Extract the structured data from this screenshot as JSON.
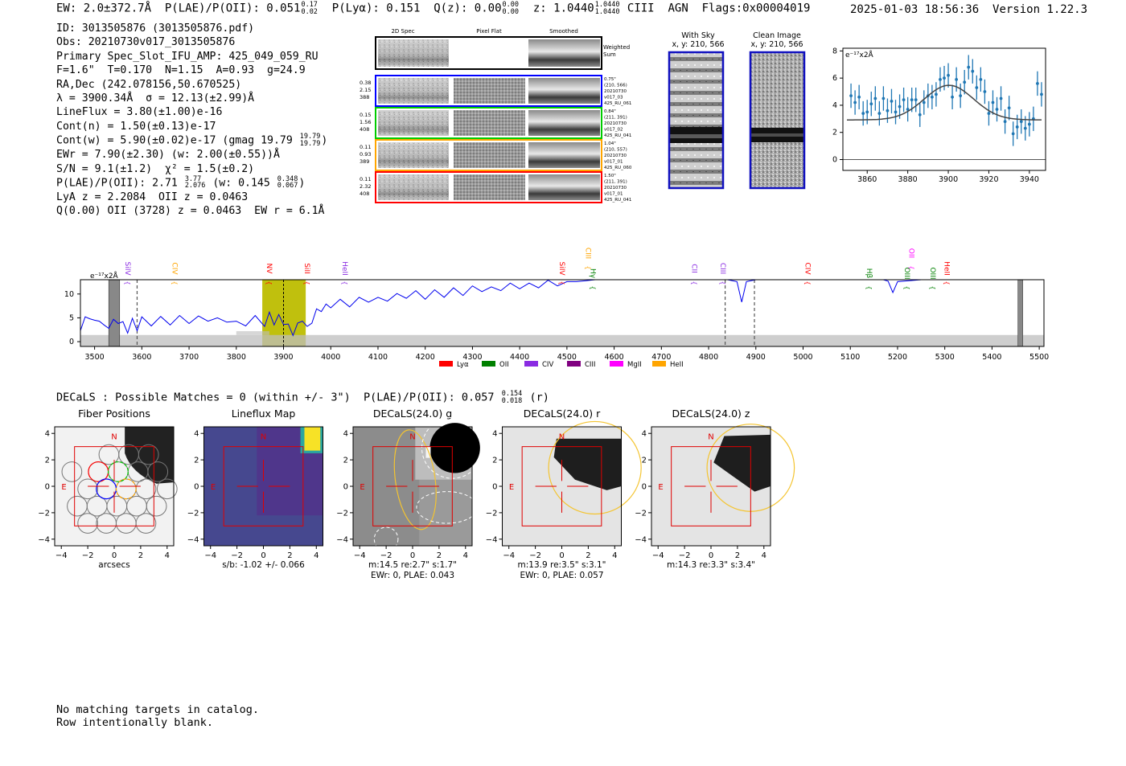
{
  "header": {
    "ew_label": "EW: 2.0±372.7Å",
    "plae_label": "P(LAE)/P(OII): 0.051",
    "plae_hi": "0.17",
    "plae_lo": "0.02",
    "plya_label": "P(Lyα): 0.151",
    "qz_label": "Q(z): 0.00",
    "qz_hi": "0.00",
    "qz_lo": "0.00",
    "z_label": "z: 1.0440",
    "z_hi": "1.0440",
    "z_lo": "1.0440",
    "tail": "CIII  AGN  Flags:0x00004019",
    "timestamp": "2025-01-03 18:56:36",
    "version": "Version 1.22.3"
  },
  "info": {
    "id": "ID: 3013505876 (3013505876.pdf)",
    "obs": "Obs: 20210730v017_3013505876",
    "primary": "Primary Spec_Slot_IFU_AMP: 425_049_059_RU",
    "fiber": "F=1.6\"  T=0.170  N=1.15  A=0.93  g=24.9",
    "radec": "RA,Dec (242.078156,50.670525)",
    "lambda": "λ = 3900.34Å  σ = 12.13(±2.99)Å",
    "lineflux": "LineFlux = 3.80(±1.00)e-16",
    "contn": "Cont(n) = 1.50(±0.13)e-17",
    "contw": "Cont(w) = 5.90(±0.02)e-17 (gmag 19.79",
    "contw_hi": "19.79",
    "contw_lo": "19.79",
    "contw_end": ")",
    "ewr": "EWr = 7.90(±2.30) (w: 2.00(±0.55))Å",
    "sn": "S/N = 9.1(±1.2)  χ² = 1.5(±0.2)",
    "plae": "P(LAE)/P(OII): 2.71",
    "plae_hi": "3.77",
    "plae_lo": "2.076",
    "plae_w": " (w: 0.145",
    "plae_w_hi": "0.348",
    "plae_w_lo": "0.067",
    "plae_end": ")",
    "lya": "LyA z = 2.2084  OII z = 0.0463",
    "q": "Q(0.00) OII (3728) z = 0.0463  EW r = 6.1Å"
  },
  "cutouts": {
    "col_titles": [
      "2D Spec",
      "Pixel Flat",
      "Smoothed"
    ],
    "weighted_sum": [
      "Weighted",
      "Sum"
    ],
    "row_colors": [
      "#0000ff",
      "#00cc00",
      "#ffa500",
      "#ff0000"
    ],
    "left_labels": [
      [
        "0.38",
        "2.15",
        "388"
      ],
      [
        "0.15",
        "1.56",
        "408"
      ],
      [
        "0.11",
        "0.93",
        "389"
      ],
      [
        "0.11",
        "2.32",
        "408"
      ]
    ],
    "right_labels": [
      [
        "0.75\"",
        "(210, 566)",
        "20210730",
        "v017_03",
        "425_RU_061"
      ],
      [
        "0.84\"",
        "(211, 391)",
        "20210730",
        "v017_02",
        "425_RU_041"
      ],
      [
        "1.04\"",
        "(210, 557)",
        "20210730",
        "v017_01",
        "425_RU_060"
      ],
      [
        "1.50\"",
        "(211, 391)",
        "20210730",
        "v017_01",
        "425_RU_041"
      ]
    ]
  },
  "sky": {
    "with_sky_title": "With Sky",
    "with_sky_coords": "x, y: 210, 566",
    "clean_title": "Clean Image",
    "clean_coords": "x, y: 210, 566",
    "frame_color": "#1010c0"
  },
  "chart_data": [
    {
      "type": "scatter",
      "name": "line-fit-zoom",
      "title": "",
      "ylabel": "e⁻¹⁷x2Å",
      "xlim": [
        3848,
        3948
      ],
      "ylim": [
        -0.8,
        8.2
      ],
      "xticks": [
        3860,
        3880,
        3900,
        3920,
        3940
      ],
      "yticks": [
        0,
        2,
        4,
        6,
        8
      ],
      "points_x": [
        3852,
        3854,
        3856,
        3858,
        3860,
        3862,
        3864,
        3866,
        3868,
        3870,
        3872,
        3874,
        3876,
        3878,
        3880,
        3882,
        3884,
        3886,
        3888,
        3890,
        3892,
        3894,
        3896,
        3898,
        3900,
        3902,
        3904,
        3906,
        3908,
        3910,
        3912,
        3914,
        3916,
        3918,
        3920,
        3922,
        3924,
        3926,
        3928,
        3930,
        3932,
        3934,
        3936,
        3938,
        3940,
        3942,
        3944,
        3946
      ],
      "points_y": [
        4.7,
        4.2,
        4.6,
        3.4,
        3.5,
        4.1,
        4.5,
        3.4,
        4.5,
        3.6,
        4.3,
        3.5,
        3.9,
        4.4,
        3.7,
        4.4,
        4.4,
        3.3,
        4.2,
        4.7,
        4.6,
        4.8,
        5.9,
        6.0,
        6.2,
        4.6,
        5.9,
        4.7,
        5.7,
        6.8,
        6.5,
        5.3,
        5.9,
        5.0,
        3.4,
        4.2,
        3.7,
        4.5,
        2.8,
        3.8,
        1.9,
        2.4,
        2.8,
        2.3,
        2.6,
        3.0,
        5.6,
        4.8
      ],
      "errors": [
        0.9,
        0.9,
        0.9,
        0.9,
        0.9,
        0.9,
        0.9,
        0.9,
        0.9,
        0.9,
        0.9,
        0.9,
        0.9,
        0.9,
        0.9,
        0.9,
        0.9,
        0.9,
        0.9,
        0.9,
        0.9,
        0.9,
        0.9,
        0.9,
        0.9,
        0.9,
        0.9,
        0.9,
        0.9,
        0.9,
        0.9,
        0.9,
        0.9,
        0.9,
        0.9,
        0.9,
        0.9,
        0.9,
        0.9,
        0.9,
        0.9,
        0.9,
        0.9,
        0.9,
        0.9,
        0.9,
        0.9,
        0.9
      ],
      "model": {
        "type": "gaussian",
        "center": 3900.34,
        "sigma": 12.13,
        "amplitude": 2.55,
        "baseline": 2.92
      },
      "point_color": "#1f77b4"
    },
    {
      "type": "line",
      "name": "full-spectrum",
      "ylabel": "e⁻¹⁷x2Å",
      "xlim": [
        3470,
        5510
      ],
      "ylim": [
        -1,
        13
      ],
      "xticks": [
        3500,
        3600,
        3700,
        3800,
        3900,
        4000,
        4100,
        4200,
        4300,
        4400,
        4500,
        4600,
        4700,
        4800,
        4900,
        5000,
        5100,
        5200,
        5300,
        5400,
        5500
      ],
      "yticks": [
        0,
        5,
        10
      ],
      "flux_x": [
        3470,
        3480,
        3490,
        3500,
        3510,
        3520,
        3530,
        3540,
        3550,
        3560,
        3570,
        3580,
        3590,
        3600,
        3620,
        3640,
        3660,
        3680,
        3700,
        3720,
        3740,
        3760,
        3780,
        3800,
        3820,
        3840,
        3860,
        3870,
        3880,
        3890,
        3900,
        3910,
        3920,
        3930,
        3940,
        3950,
        3960,
        3970,
        3980,
        3990,
        4000,
        4020,
        4040,
        4060,
        4080,
        4100,
        4120,
        4140,
        4160,
        4180,
        4200,
        4220,
        4240,
        4260,
        4280,
        4300,
        4320,
        4340,
        4360,
        4380,
        4400,
        4420,
        4440,
        4460,
        4480,
        4500,
        4520,
        4540,
        4560,
        4580,
        4600,
        4650,
        4700,
        4750,
        4800,
        4820,
        4840,
        4860,
        4870,
        4880,
        4900,
        4950,
        5000,
        5050,
        5100,
        5150,
        5170,
        5180,
        5190,
        5200,
        5250,
        5300,
        5350,
        5400,
        5450,
        5500
      ],
      "flux_y": [
        3.0,
        4.5,
        5.5,
        3.8,
        5.0,
        2.8,
        3.5,
        4.0,
        4.5,
        3.5,
        2.5,
        4.2,
        3.0,
        4.5,
        4.0,
        4.6,
        4.2,
        4.8,
        4.5,
        4.7,
        5.0,
        4.3,
        4.8,
        3.6,
        4.0,
        4.8,
        3.9,
        5.5,
        4.2,
        5.0,
        4.3,
        3.0,
        2.0,
        3.2,
        5.0,
        2.5,
        4.6,
        6.2,
        7.0,
        7.2,
        7.8,
        8.2,
        8.0,
        8.6,
        9.0,
        8.6,
        9.2,
        9.4,
        9.8,
        10.0,
        9.6,
        10.2,
        10.0,
        10.6,
        10.4,
        11.0,
        11.2,
        10.8,
        11.4,
        11.6,
        11.8,
        11.6,
        12.0,
        12.2,
        12.4,
        12.6,
        12.6,
        12.8,
        13,
        13,
        13,
        13,
        13,
        13,
        13,
        13,
        13,
        12.6,
        9.0,
        12.6,
        13,
        13,
        13,
        13,
        13,
        13,
        13,
        12.0,
        11.0,
        12.6,
        13,
        13,
        13,
        13,
        13,
        13
      ],
      "error_level": 1.4,
      "highlight_band": [
        3855,
        3947
      ],
      "marked_line": 3900,
      "dashed_lines": [
        3590,
        4835,
        4897
      ],
      "bad_regions": [
        [
          3530,
          3553
        ],
        [
          5455,
          5465
        ]
      ],
      "line_markers": [
        {
          "label": "SiIV",
          "x": 3560,
          "color": "#8a2be2",
          "level": "mid"
        },
        {
          "label": "CIV",
          "x": 3660,
          "color": "#ffa500",
          "level": "mid"
        },
        {
          "label": "NV",
          "x": 3860,
          "color": "#ff0000",
          "level": "mid"
        },
        {
          "label": "SiII",
          "x": 3940,
          "color": "#ff0000",
          "level": "mid"
        },
        {
          "label": "HeII",
          "x": 4020,
          "color": "#8a2be2",
          "level": "mid"
        },
        {
          "label": "SiIV",
          "x": 4480,
          "color": "#ff0000",
          "level": "mid"
        },
        {
          "label": "CIII",
          "x": 4535,
          "color": "#ffa500",
          "level": "high"
        },
        {
          "label": "Hγ",
          "x": 4545,
          "color": "#008000",
          "level": "low"
        },
        {
          "label": "CII",
          "x": 4760,
          "color": "#8a2be2",
          "level": "mid"
        },
        {
          "label": "CIII",
          "x": 4820,
          "color": "#8a2be2",
          "level": "mid"
        },
        {
          "label": "CIV",
          "x": 5000,
          "color": "#ff0000",
          "level": "mid"
        },
        {
          "label": "Hβ",
          "x": 5130,
          "color": "#008000",
          "level": "low"
        },
        {
          "label": "OII",
          "x": 5220,
          "color": "#ff00ff",
          "level": "high"
        },
        {
          "label": "OIII",
          "x": 5210,
          "color": "#008000",
          "level": "low"
        },
        {
          "label": "OIII",
          "x": 5265,
          "color": "#008000",
          "level": "low"
        },
        {
          "label": "HeII",
          "x": 5295,
          "color": "#ff0000",
          "level": "mid"
        }
      ],
      "legend": [
        {
          "label": "Lyα",
          "color": "#ff0000"
        },
        {
          "label": "OII",
          "color": "#008000"
        },
        {
          "label": "CIV",
          "color": "#8a2be2"
        },
        {
          "label": "CIII",
          "color": "#800080"
        },
        {
          "label": "MgII",
          "color": "#ff00ff"
        },
        {
          "label": "HeII",
          "color": "#ffa500"
        }
      ]
    }
  ],
  "decals": {
    "summary": "DECaLS : Possible Matches = 0 (within +/- 3\")  P(LAE)/P(OII): 0.057",
    "summary_hi": "0.154",
    "summary_lo": "0.018",
    "summary_end": "(r)",
    "panels": [
      {
        "title": "Fiber Positions",
        "caption1": "arcsecs",
        "caption2": "",
        "kind": "fiber"
      },
      {
        "title": "Lineflux Map",
        "caption1": "s/b: -1.02 +/- 0.066",
        "caption2": "",
        "kind": "lineflux"
      },
      {
        "title": "DECaLS(24.0) g",
        "caption1": "m:14.5  re:2.7\"  s:1.7\"",
        "caption2": "EWr: 0, PLAE: 0.043",
        "kind": "g"
      },
      {
        "title": "DECaLS(24.0) r",
        "caption1": "m:13.9  re:3.5\"  s:3.1\"",
        "caption2": "EWr: 0, PLAE: 0.057",
        "kind": "r"
      },
      {
        "title": "DECaLS(24.0) z",
        "caption1": "m:14.3  re:3.3\"  s:3.4\"",
        "caption2": "",
        "kind": "z"
      }
    ],
    "axis_ticks": [
      -4,
      -2,
      0,
      2,
      4
    ],
    "north_label": "N",
    "east_label": "E"
  },
  "footer": {
    "line1": "No matching targets in catalog.",
    "line2": "Row intentionally blank."
  }
}
